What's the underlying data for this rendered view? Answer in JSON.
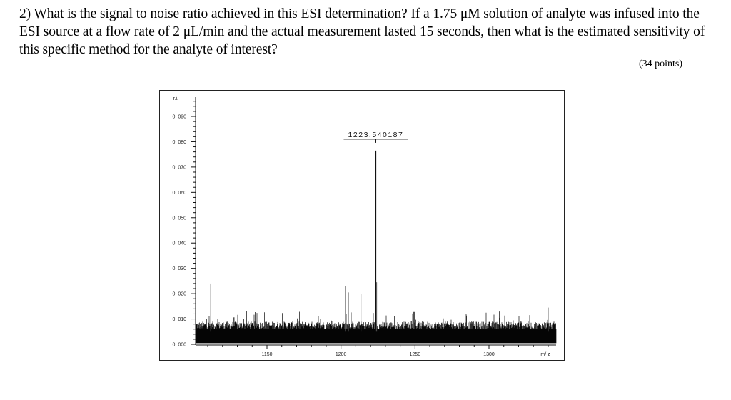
{
  "question": {
    "number": "2)",
    "text": "2) What is the signal to noise ratio achieved in this ESI determination?  If a 1.75 μM solution of analyte was infused into the ESI source at a flow rate of 2 μL/min and the actual measurement lasted 15 seconds, then what is the estimated sensitivity of this specific method for the analyte of interest?",
    "points": "(34 points)"
  },
  "chart_data": {
    "type": "line",
    "title": "",
    "xlabel": "m/z",
    "ylabel": "r.i.",
    "xlim": [
      1102,
      1345
    ],
    "ylim": [
      0.0,
      0.095
    ],
    "x_ticks": [
      1150,
      1200,
      1250,
      1300
    ],
    "x_tick_labels": [
      "1150",
      "1200",
      "1250",
      "1300"
    ],
    "y_ticks": [
      0.0,
      0.01,
      0.02,
      0.03,
      0.04,
      0.05,
      0.06,
      0.07,
      0.08,
      0.09
    ],
    "y_tick_labels": [
      "0. 000",
      "0. 010",
      "0. 020",
      "0. 030",
      "0. 040",
      "0. 050",
      "0. 060",
      "0. 070",
      "0. 080",
      "0. 090"
    ],
    "grid": false,
    "legend": null,
    "noise_baseline": {
      "min": 0.0005,
      "typical_max": 0.009,
      "occasional_max": 0.013
    },
    "peaks": [
      {
        "mz": 1223.540187,
        "intensity": 0.0765,
        "label": "1223.540187"
      },
      {
        "mz": 1224.1,
        "intensity": 0.0245
      },
      {
        "mz": 1112.0,
        "intensity": 0.024
      },
      {
        "mz": 1203.0,
        "intensity": 0.023
      },
      {
        "mz": 1205.0,
        "intensity": 0.0205
      },
      {
        "mz": 1213.5,
        "intensity": 0.02
      },
      {
        "mz": 1340.0,
        "intensity": 0.0145
      }
    ],
    "annotations": [
      {
        "text": "1223.540187",
        "x": 1223.540187,
        "y": 0.081
      }
    ]
  },
  "plot": {
    "y_axis_title": "r.i.",
    "x_axis_title": "m/ z",
    "peak_label": "1223.540187"
  }
}
